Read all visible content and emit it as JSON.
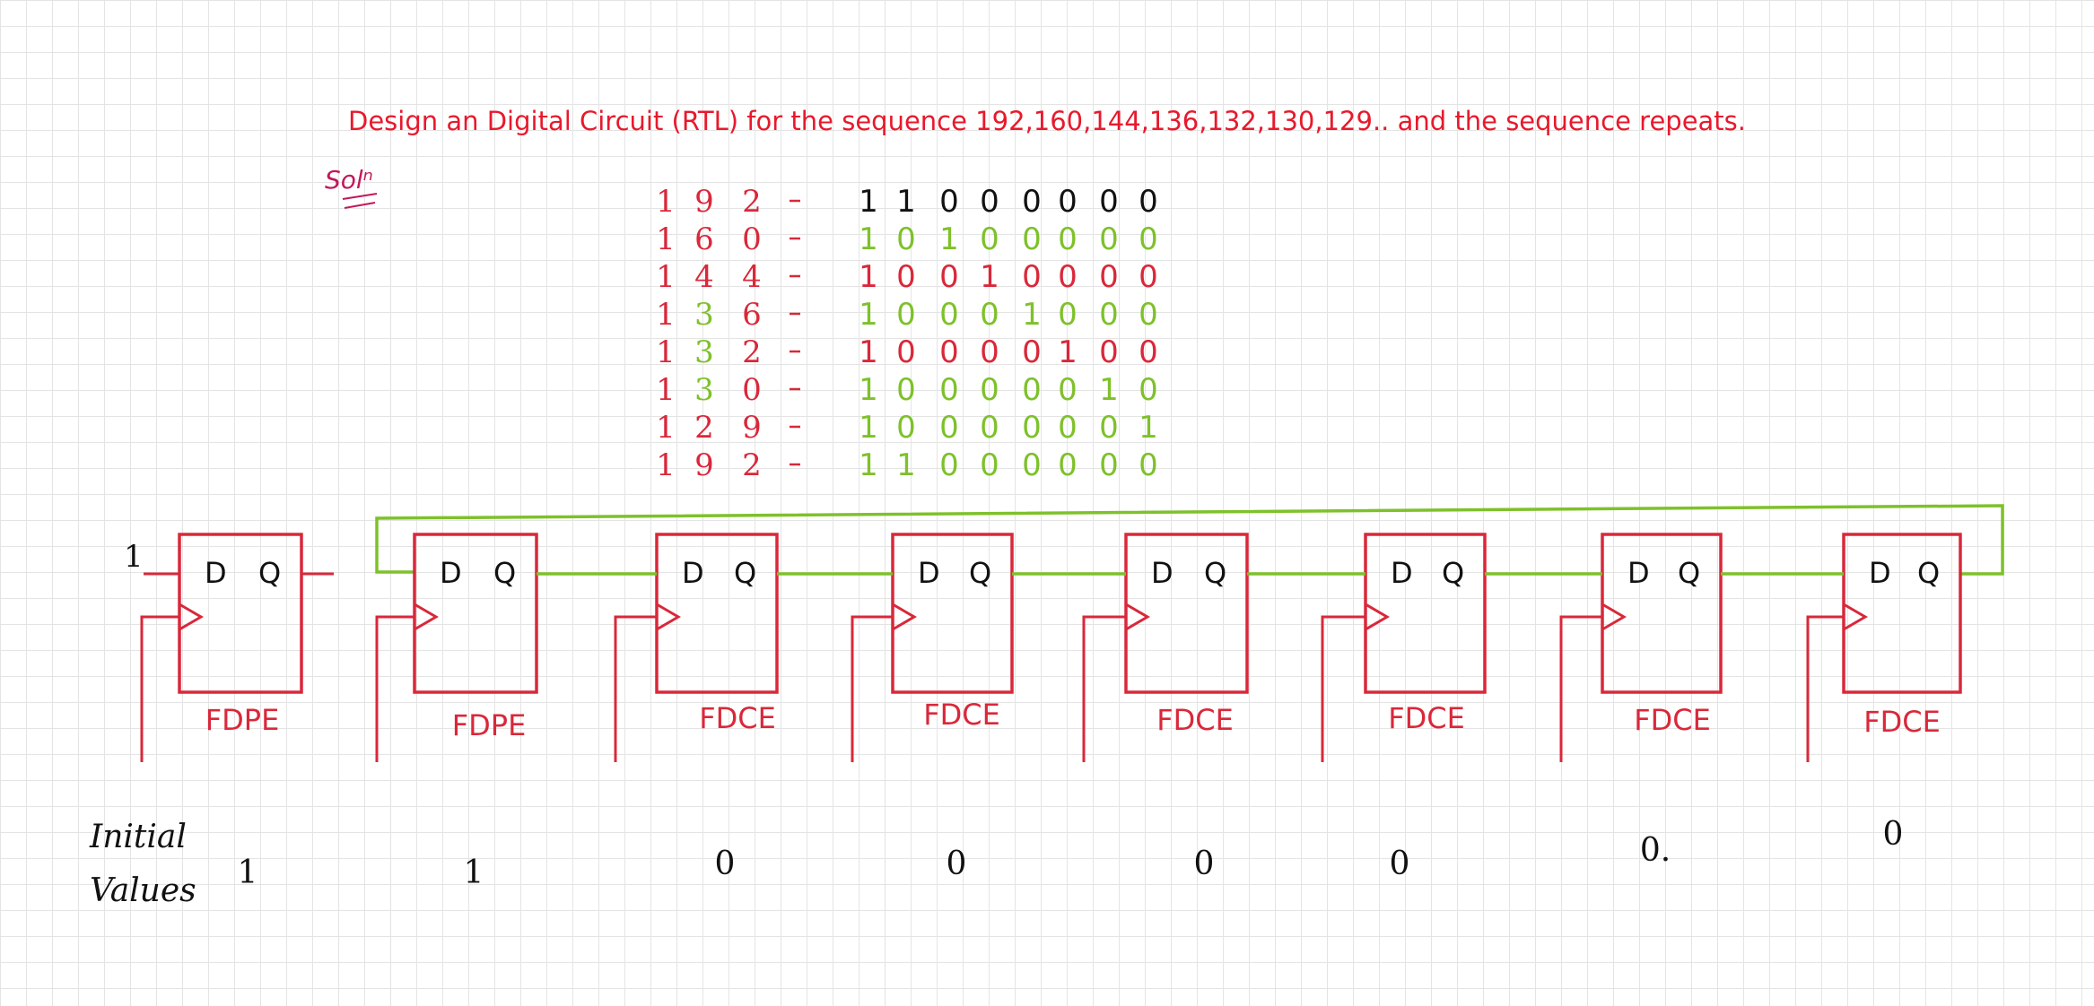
{
  "title": "Design an Digital Circuit (RTL) for the sequence 192,160,144,136,132,130,129.. and the sequence repeats.",
  "soln_label": "Solⁿ",
  "table": {
    "rows": [
      {
        "dec": "192",
        "bits": [
          "1",
          "1",
          "0",
          "0",
          "0",
          "0",
          "0",
          "0"
        ]
      },
      {
        "dec": "160",
        "bits": [
          "1",
          "0",
          "1",
          "0",
          "0",
          "0",
          "0",
          "0"
        ]
      },
      {
        "dec": "144",
        "bits": [
          "1",
          "0",
          "0",
          "1",
          "0",
          "0",
          "0",
          "0"
        ]
      },
      {
        "dec": "136",
        "bits": [
          "1",
          "0",
          "0",
          "0",
          "1",
          "0",
          "0",
          "0"
        ]
      },
      {
        "dec": "132",
        "bits": [
          "1",
          "0",
          "0",
          "0",
          "0",
          "1",
          "0",
          "0"
        ]
      },
      {
        "dec": "130",
        "bits": [
          "1",
          "0",
          "0",
          "0",
          "0",
          "0",
          "1",
          "0"
        ]
      },
      {
        "dec": "129",
        "bits": [
          "1",
          "0",
          "0",
          "0",
          "0",
          "0",
          "0",
          "1"
        ]
      },
      {
        "dec": "192",
        "bits": [
          "1",
          "1",
          "0",
          "0",
          "0",
          "0",
          "0",
          "0"
        ]
      }
    ]
  },
  "input_label": "1",
  "flipflops": [
    {
      "type": "FDPE",
      "d": "D",
      "q": "Q",
      "initial": "1"
    },
    {
      "type": "FDPE",
      "d": "D",
      "q": "Q",
      "initial": "1"
    },
    {
      "type": "FDCE",
      "d": "D",
      "q": "Q",
      "initial": "0"
    },
    {
      "type": "FDCE",
      "d": "D",
      "q": "Q",
      "initial": "0"
    },
    {
      "type": "FDCE",
      "d": "D",
      "q": "Q",
      "initial": "0"
    },
    {
      "type": "FDCE",
      "d": "D",
      "q": "Q",
      "initial": "0"
    },
    {
      "type": "FDCE",
      "d": "D",
      "q": "Q",
      "initial": "0."
    },
    {
      "type": "FDCE",
      "d": "D",
      "q": "Q",
      "initial": "0"
    }
  ],
  "initial_values_label": [
    "Initial",
    "Values"
  ],
  "colors": {
    "title": "#e8192c",
    "red": "#d9283a",
    "green": "#7ec12a",
    "black": "#111111",
    "magenta": "#c2185b"
  }
}
